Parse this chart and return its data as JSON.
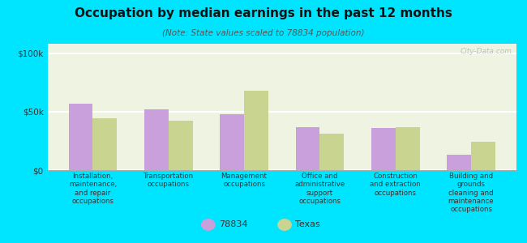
{
  "title": "Occupation by median earnings in the past 12 months",
  "subtitle": "(Note: State values scaled to 78834 population)",
  "categories": [
    "Installation,\nmaintenance,\nand repair\noccupations",
    "Transportation\noccupations",
    "Management\noccupations",
    "Office and\nadministrative\nsupport\noccupations",
    "Construction\nand extraction\noccupations",
    "Building and\ngrounds\ncleaning and\nmaintenance\noccupations"
  ],
  "values_78834": [
    57000,
    52000,
    48000,
    37000,
    36000,
    13000
  ],
  "values_texas": [
    44000,
    42000,
    68000,
    31000,
    37000,
    24000
  ],
  "color_78834": "#c9a0dc",
  "color_texas": "#c8d490",
  "background_color": "#00e5ff",
  "plot_bg": "#eef3e2",
  "yticks": [
    0,
    50000,
    100000
  ],
  "ylabels": [
    "$0",
    "$50k",
    "$100k"
  ],
  "ylim": [
    0,
    108000
  ],
  "bar_width": 0.32,
  "legend_label_78834": "78834",
  "legend_label_texas": "Texas",
  "watermark": "City-Data.com"
}
